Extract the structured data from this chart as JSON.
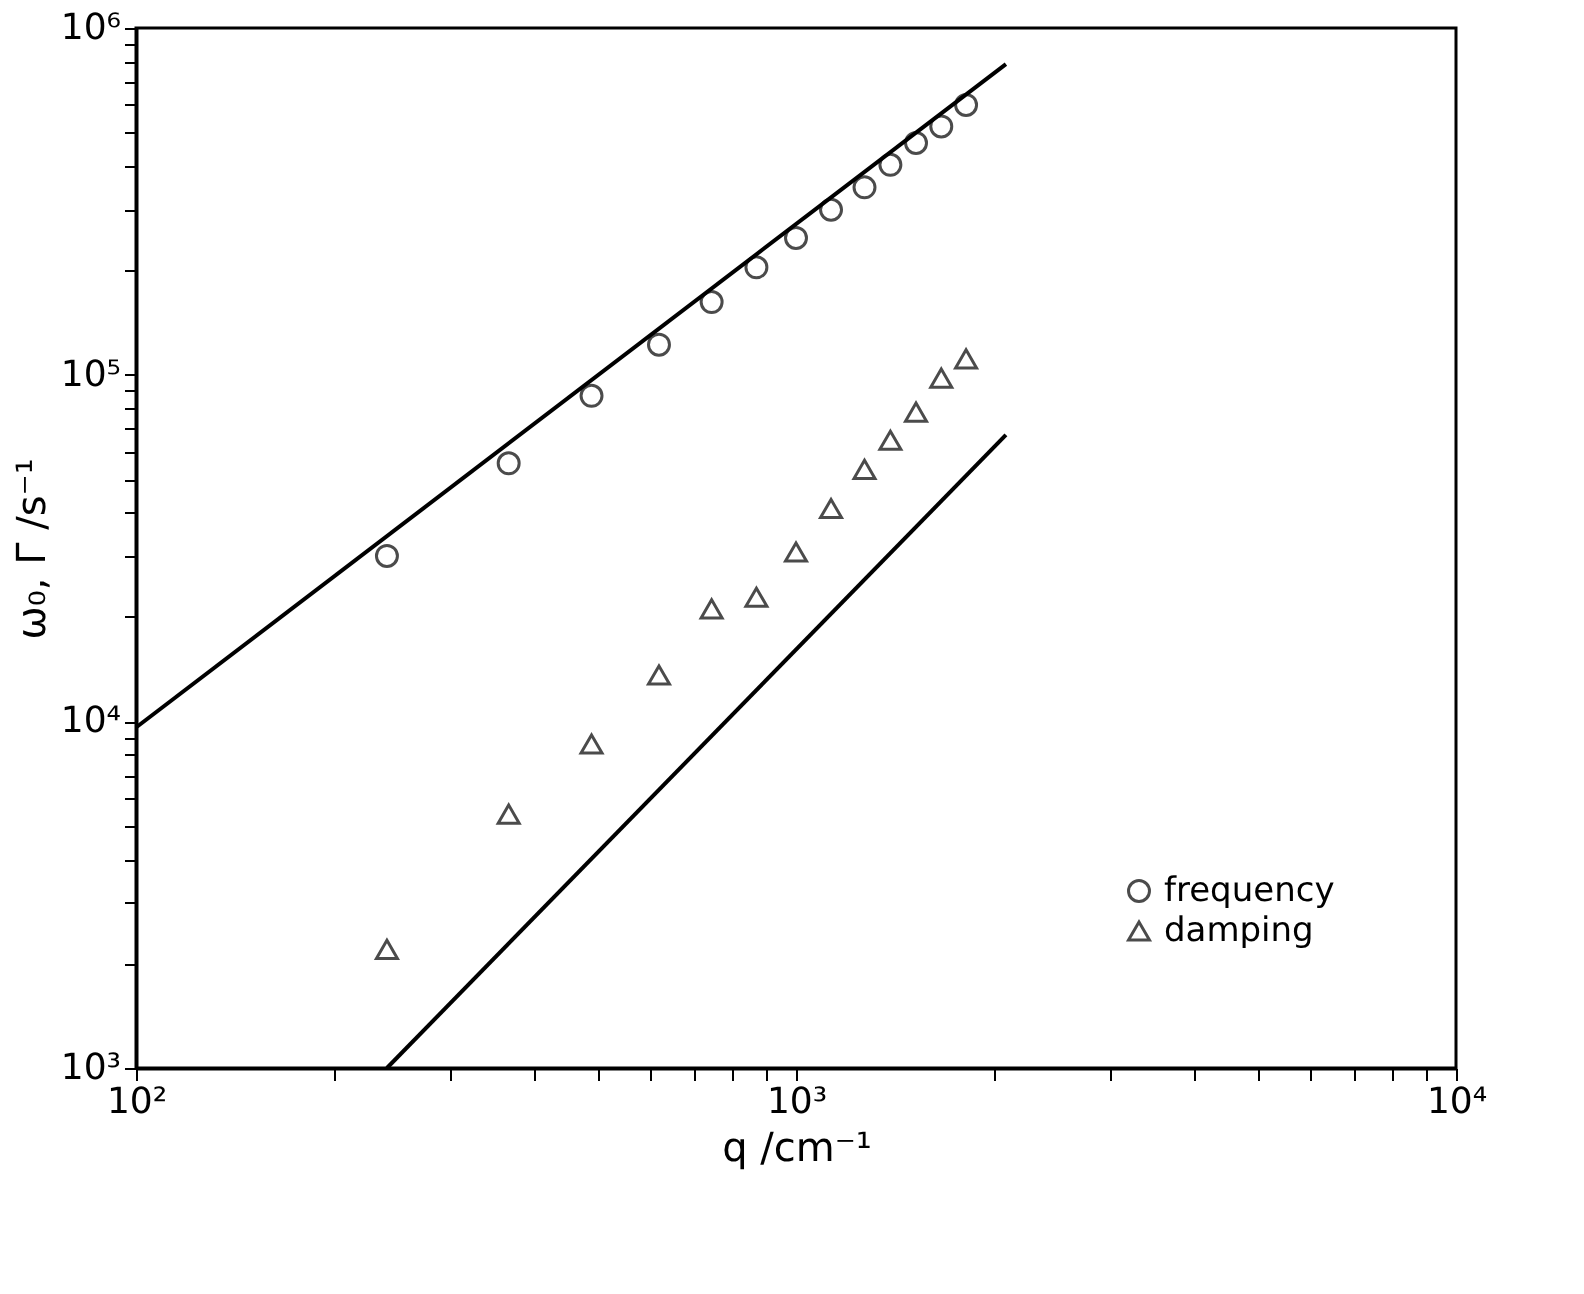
{
  "chart_data": {
    "type": "scatter",
    "xlabel": "q  /cm⁻¹",
    "ylabel": "ω₀, Γ  /s⁻¹",
    "xlim": [
      100,
      10000
    ],
    "ylim": [
      1000,
      1000000
    ],
    "log": "xy",
    "grid": false,
    "legend": "bottom right",
    "xticks": [
      {
        "value": 100,
        "label": "10²"
      },
      {
        "value": 200,
        "label": null
      },
      {
        "value": 300,
        "label": null
      },
      {
        "value": 400,
        "label": null
      },
      {
        "value": 500,
        "label": null
      },
      {
        "value": 600,
        "label": null
      },
      {
        "value": 700,
        "label": null
      },
      {
        "value": 800,
        "label": null
      },
      {
        "value": 900,
        "label": null
      },
      {
        "value": 1000,
        "label": "10³"
      },
      {
        "value": 2000,
        "label": null
      },
      {
        "value": 3000,
        "label": null
      },
      {
        "value": 4000,
        "label": null
      },
      {
        "value": 5000,
        "label": null
      },
      {
        "value": 6000,
        "label": null
      },
      {
        "value": 7000,
        "label": null
      },
      {
        "value": 8000,
        "label": null
      },
      {
        "value": 9000,
        "label": null
      },
      {
        "value": 10000,
        "label": "10⁴"
      }
    ],
    "yticks": [
      {
        "value": 1000,
        "label": "10³"
      },
      {
        "value": 2000,
        "label": null
      },
      {
        "value": 3000,
        "label": null
      },
      {
        "value": 4000,
        "label": null
      },
      {
        "value": 5000,
        "label": null
      },
      {
        "value": 6000,
        "label": null
      },
      {
        "value": 7000,
        "label": null
      },
      {
        "value": 8000,
        "label": null
      },
      {
        "value": 9000,
        "label": null
      },
      {
        "value": 10000,
        "label": "10⁴"
      },
      {
        "value": 20000,
        "label": null
      },
      {
        "value": 30000,
        "label": null
      },
      {
        "value": 40000,
        "label": null
      },
      {
        "value": 50000,
        "label": null
      },
      {
        "value": 60000,
        "label": null
      },
      {
        "value": 70000,
        "label": null
      },
      {
        "value": 80000,
        "label": null
      },
      {
        "value": 90000,
        "label": null
      },
      {
        "value": 100000,
        "label": "10⁵"
      },
      {
        "value": 200000,
        "label": null
      },
      {
        "value": 300000,
        "label": null
      },
      {
        "value": 400000,
        "label": null
      },
      {
        "value": 500000,
        "label": null
      },
      {
        "value": 600000,
        "label": null
      },
      {
        "value": 700000,
        "label": null
      },
      {
        "value": 800000,
        "label": null
      },
      {
        "value": 900000,
        "label": null
      },
      {
        "value": 1000000,
        "label": "10⁶"
      }
    ],
    "x": [
      240,
      367,
      490,
      620,
      745,
      871,
      1000,
      1130,
      1270,
      1390,
      1520,
      1660,
      1810
    ],
    "series": [
      {
        "name": "frequency",
        "color": "#000000",
        "marker": "circle",
        "values": [
          30000,
          55500,
          86900,
          122000,
          162000,
          204000,
          248000,
          299000,
          347000,
          403000,
          466000,
          520000,
          600000
        ]
      },
      {
        "name": "damping",
        "color": "#000000",
        "marker": "triangle",
        "values": [
          2200,
          5400,
          8600,
          13600,
          21100,
          22800,
          30800,
          41100,
          53300,
          64700,
          78000,
          97700,
          111000
        ]
      },
      {
        "type": "line",
        "color": "#000000",
        "line_style": "solid",
        "x": [
          100,
          2080
        ],
        "values": [
          9600,
          787000
        ]
      },
      {
        "type": "line",
        "color": "#000000",
        "line_style": "solid",
        "x": [
          240,
          2080
        ],
        "values": [
          1000,
          67000
        ]
      }
    ]
  }
}
